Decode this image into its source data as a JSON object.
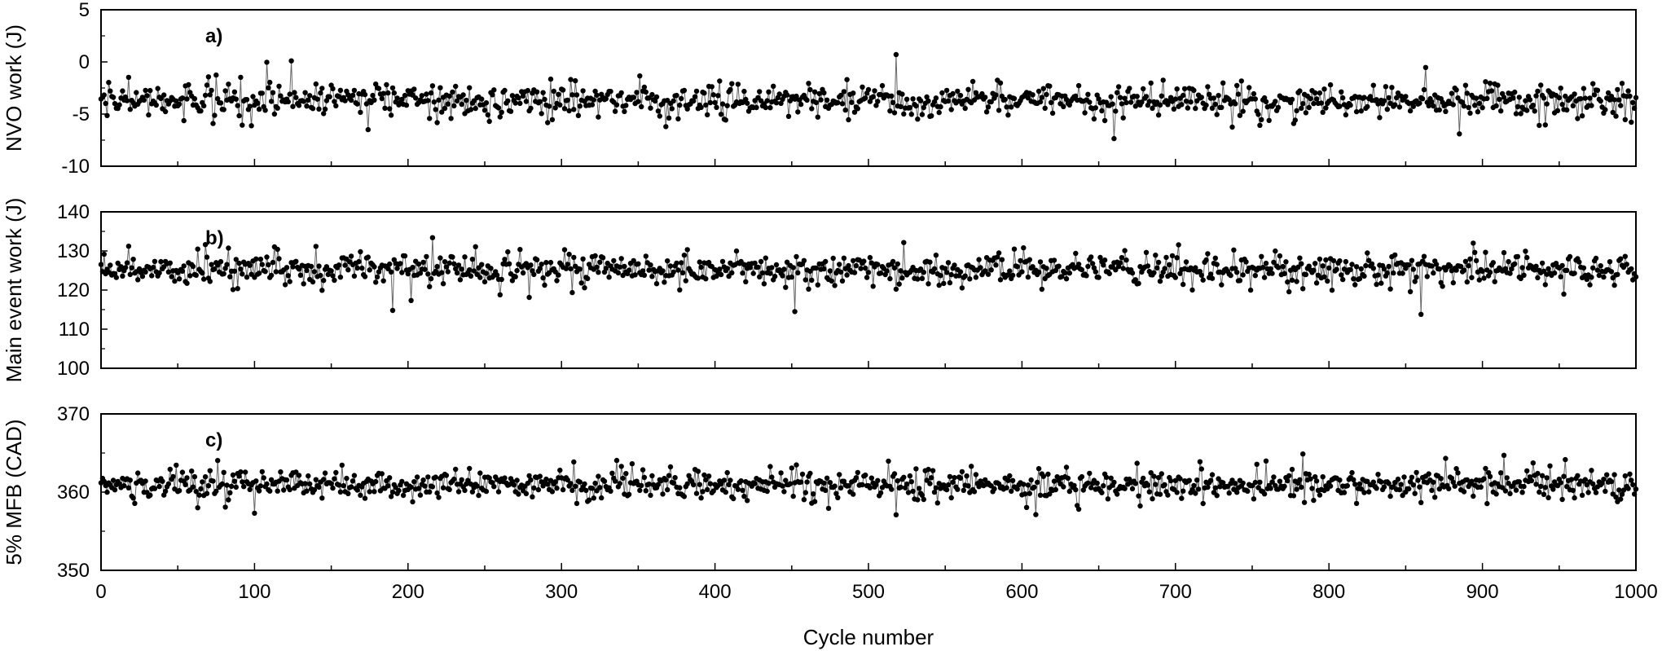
{
  "figure": {
    "xlabel": "Cycle number",
    "xlim": [
      0,
      1000
    ],
    "xticks": [
      0,
      100,
      200,
      300,
      400,
      500,
      600,
      700,
      800,
      900,
      1000
    ],
    "colors": {
      "line": "#666666",
      "marker": "#000000",
      "frame": "#000000"
    }
  },
  "chart_data": [
    {
      "type": "line",
      "panel_label": "a)",
      "ylabel": "NVO work (J)",
      "ylim": [
        -10,
        5
      ],
      "yticks": [
        -10,
        -5,
        0,
        5
      ],
      "x_range": [
        0,
        1000
      ],
      "series_note": "1001 cycle-resolved values, approx. -3.7 J mean",
      "peaks": [
        {
          "x": 124,
          "y": 0.1
        },
        {
          "x": 518,
          "y": 0.7
        },
        {
          "x": 885,
          "y": -6.9
        }
      ],
      "values_seed": {
        "mean": -3.7,
        "spread": 0.9
      }
    },
    {
      "type": "line",
      "panel_label": "b)",
      "ylabel": "Main event work (J)",
      "ylim": [
        100,
        140
      ],
      "yticks": [
        100,
        110,
        120,
        130,
        140
      ],
      "x_range": [
        0,
        1000
      ],
      "peaks": [
        {
          "x": 190,
          "y": 114.8
        },
        {
          "x": 452,
          "y": 114.5
        },
        {
          "x": 860,
          "y": 113.8
        },
        {
          "x": 601,
          "y": 130.8
        }
      ],
      "values_seed": {
        "mean": 125.3,
        "spread": 2.2
      }
    },
    {
      "type": "line",
      "panel_label": "c)",
      "ylabel": "5% MFB (CAD)",
      "ylim": [
        350,
        370
      ],
      "yticks": [
        350,
        360,
        370
      ],
      "x_range": [
        0,
        1000
      ],
      "peaks": [
        {
          "x": 518,
          "y": 365.2
        },
        {
          "x": 518,
          "y": 357.1
        },
        {
          "x": 100,
          "y": 357.3
        }
      ],
      "values_seed": {
        "mean": 361.0,
        "spread": 1.1
      }
    }
  ]
}
